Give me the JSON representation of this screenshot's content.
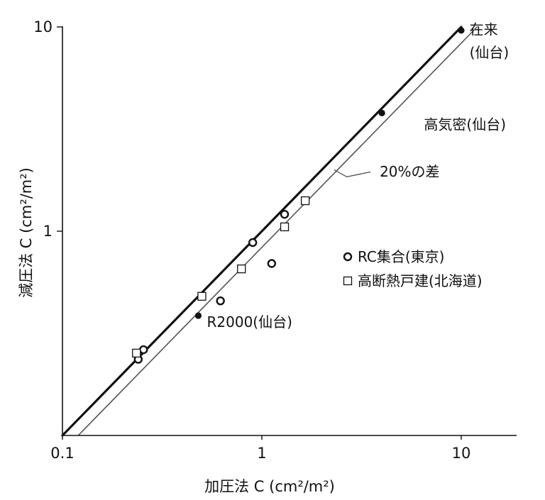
{
  "chart_data": {
    "type": "scatter",
    "title": "",
    "xlabel": "加圧法 C (cm²/m²)",
    "ylabel": "減圧法 C (cm²/m²)",
    "xscale": "log",
    "yscale": "log",
    "xlim": [
      0.1,
      20
    ],
    "ylim": [
      0.1,
      10
    ],
    "x_tick_labels": [
      {
        "value": 0.1,
        "label": "0.1"
      },
      {
        "value": 1,
        "label": "1"
      },
      {
        "value": 10,
        "label": "10"
      }
    ],
    "y_tick_labels": [
      {
        "value": 1,
        "label": "1"
      },
      {
        "value": 10,
        "label": "10"
      }
    ],
    "grid": false,
    "legend_position": "right",
    "series": [
      {
        "name": "RC集合(東京)",
        "marker": "open-circle",
        "points": [
          {
            "x": 0.24,
            "y": 0.236
          },
          {
            "x": 0.255,
            "y": 0.263
          },
          {
            "x": 0.62,
            "y": 0.456
          },
          {
            "x": 0.9,
            "y": 0.88
          },
          {
            "x": 1.12,
            "y": 0.695
          },
          {
            "x": 1.3,
            "y": 1.21
          }
        ]
      },
      {
        "name": "高断熱戸建(北海道)",
        "marker": "open-square",
        "points": [
          {
            "x": 0.235,
            "y": 0.253
          },
          {
            "x": 0.5,
            "y": 0.48
          },
          {
            "x": 0.79,
            "y": 0.654
          },
          {
            "x": 1.3,
            "y": 1.05
          },
          {
            "x": 1.65,
            "y": 1.41
          }
        ]
      },
      {
        "marker": "filled-circle",
        "points": [
          {
            "x": 0.48,
            "y": 0.386
          },
          {
            "x": 4.0,
            "y": 3.79
          },
          {
            "x": 10.0,
            "y": 9.62
          }
        ]
      }
    ],
    "reference_lines": [
      {
        "type": "thick",
        "x": [
          0.1,
          10.0
        ],
        "y": [
          0.1,
          10.0
        ]
      },
      {
        "type": "thin",
        "x": [
          0.12,
          12.0
        ],
        "y": [
          0.1,
          10.0
        ]
      }
    ],
    "annotations": [
      {
        "text": "在来",
        "x": 11.0,
        "y": 9.2
      },
      {
        "text": "(仙台)",
        "x": 11.0,
        "y": 7.1
      },
      {
        "text": "高気密(仙台)",
        "x": 6.5,
        "y": 3.15
      },
      {
        "text": "20%の差",
        "x": 3.9,
        "y": 1.85
      },
      {
        "text": "R2000(仙台)",
        "x": 0.53,
        "y": 0.34
      }
    ],
    "pointer": {
      "from": [
        2.3,
        2.0
      ],
      "to": [
        3.5,
        1.95
      ]
    }
  },
  "colors": {
    "ink": "#111111",
    "thin_line": "#555555",
    "background": "#ffffff"
  }
}
